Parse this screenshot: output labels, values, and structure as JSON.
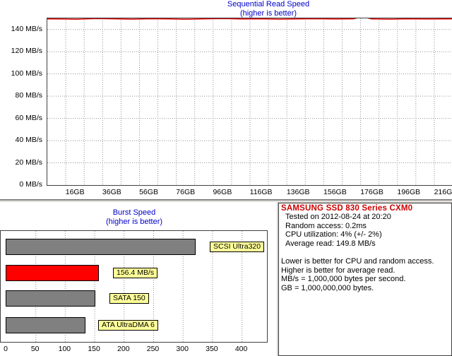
{
  "read_chart": {
    "title": "Sequential Read Speed",
    "subtitle": "(higher is better)",
    "y_ticks": [
      "0 MB/s",
      "20 MB/s",
      "40 MB/s",
      "60 MB/s",
      "80 MB/s",
      "100 MB/s",
      "120 MB/s",
      "140 MB/s"
    ],
    "x_ticks": [
      "16GB",
      "36GB",
      "56GB",
      "76GB",
      "96GB",
      "116GB",
      "136GB",
      "156GB",
      "176GB",
      "196GB",
      "216GB"
    ],
    "line_color": "#e00000"
  },
  "burst_chart": {
    "title": "Burst Speed",
    "subtitle": "(higher is better)",
    "x_ticks": [
      "0",
      "50",
      "100",
      "150",
      "200",
      "250",
      "300",
      "350",
      "400"
    ],
    "bars": [
      {
        "label": "SCSI Ultra320",
        "value": 320,
        "color": "#808080"
      },
      {
        "label": "156.4 MB/s",
        "value": 156.4,
        "color": "#ff0000"
      },
      {
        "label": "SATA 150",
        "value": 150,
        "color": "#808080"
      },
      {
        "label": "ATA UltraDMA 6",
        "value": 133,
        "color": "#808080"
      }
    ]
  },
  "chart_data": [
    {
      "type": "line",
      "title": "Sequential Read Speed",
      "subtitle": "(higher is better)",
      "xlabel": "",
      "ylabel": "",
      "ylim": [
        0,
        150
      ],
      "grid": true,
      "x": [
        0,
        8,
        16,
        26,
        36,
        46,
        56,
        66,
        76,
        86,
        96,
        106,
        116,
        126,
        136,
        146,
        156,
        166,
        171,
        176,
        186,
        196,
        206,
        216,
        220
      ],
      "series": [
        {
          "values": [
            149.5,
            149.4,
            149.2,
            149.8,
            149.6,
            149.3,
            149.7,
            149.5,
            149.2,
            149.6,
            149.9,
            149.4,
            149.6,
            149.3,
            149.5,
            149.7,
            149.4,
            149.6,
            151.5,
            149.5,
            149.3,
            149.6,
            149.4,
            149.5,
            149.6
          ]
        }
      ]
    },
    {
      "type": "bar",
      "orientation": "horizontal",
      "title": "Burst Speed",
      "subtitle": "(higher is better)",
      "xlim": [
        0,
        440
      ],
      "categories": [
        "SCSI Ultra320",
        "156.4 MB/s",
        "SATA 150",
        "ATA UltraDMA 6"
      ],
      "values": [
        320,
        156.4,
        150,
        133
      ]
    }
  ],
  "info": {
    "drive": "SAMSUNG SSD 830 Series CXM0",
    "lines": [
      "Tested on 2012-08-24 at 20:20",
      "Random access: 0.2ms",
      "CPU utilization: 4% (+/- 2%)",
      "Average read: 149.8 MB/s"
    ],
    "notes": [
      "Lower is better for CPU and random access.",
      "Higher is better for average read.",
      "MB/s = 1,000,000 bytes per second.",
      "GB = 1,000,000,000 bytes."
    ]
  }
}
